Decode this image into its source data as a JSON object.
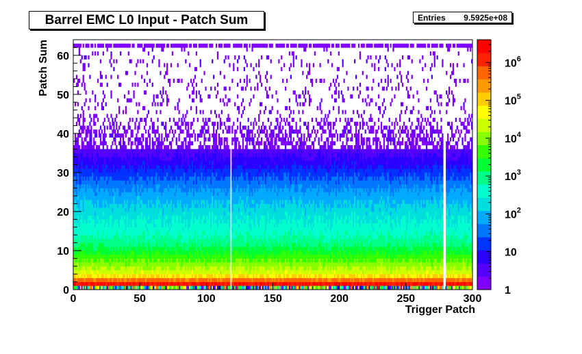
{
  "chart_data": {
    "type": "heatmap",
    "title": "Barrel EMC L0 Input - Patch Sum",
    "xlabel": "Trigger Patch",
    "ylabel": "Patch Sum",
    "xlim": [
      0,
      300
    ],
    "ylim": [
      0,
      64
    ],
    "x_ticks": [
      0,
      50,
      100,
      150,
      200,
      250,
      300
    ],
    "y_ticks": [
      0,
      10,
      20,
      30,
      40,
      50,
      60
    ],
    "zscale": "log",
    "zlim": [
      1,
      4000000
    ],
    "z_ticks": [
      {
        "value": 1,
        "label": "1"
      },
      {
        "value": 10,
        "label": "10"
      },
      {
        "value": 100,
        "label": "10^2"
      },
      {
        "value": 1000,
        "label": "10^3"
      },
      {
        "value": 10000,
        "label": "10^4"
      },
      {
        "value": 100000,
        "label": "10^5"
      },
      {
        "value": 1000000,
        "label": "10^6"
      }
    ],
    "stats": {
      "entries_label": "Entries",
      "entries_value": "9.5925e+08"
    },
    "empty_columns": [
      118,
      278,
      279
    ],
    "profile": [
      {
        "y": 1,
        "count": 3000000
      },
      {
        "y": 2,
        "count": 1000000
      },
      {
        "y": 4,
        "count": 30000
      },
      {
        "y": 6,
        "count": 12000
      },
      {
        "y": 8,
        "count": 5000
      },
      {
        "y": 10,
        "count": 2000
      },
      {
        "y": 12,
        "count": 900
      },
      {
        "y": 14,
        "count": 500
      },
      {
        "y": 18,
        "count": 250
      },
      {
        "y": 22,
        "count": 120
      },
      {
        "y": 26,
        "count": 50
      },
      {
        "y": 30,
        "count": 15
      },
      {
        "y": 34,
        "count": 5
      },
      {
        "y": 38,
        "count": 2
      },
      {
        "y": 42,
        "count": 1
      },
      {
        "y": 50,
        "count": 1
      },
      {
        "y": 62,
        "count": 1
      }
    ],
    "grid": false,
    "colormap": [
      "#7f00ff",
      "#5500ff",
      "#2a00ff",
      "#0033ff",
      "#0077ff",
      "#00aaff",
      "#00dddd",
      "#00ffcc",
      "#00ff88",
      "#00ff33",
      "#33ff00",
      "#88ff00",
      "#ccff00",
      "#ffff00",
      "#ffcc00",
      "#ff9900",
      "#ff6600",
      "#ff2200",
      "#ff0000"
    ]
  }
}
